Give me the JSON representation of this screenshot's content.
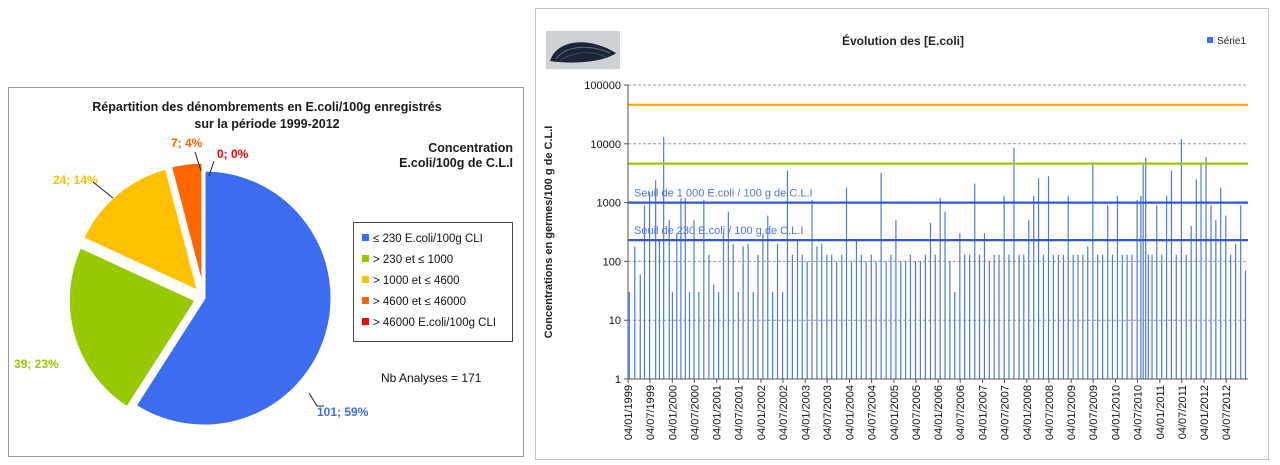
{
  "pie_panel": {
    "title_line1": "Répartition des dénombrements en E.coli/100g enregistrés",
    "title_line2": "sur la période 1999-2012",
    "legend_title_line1": "Concentration",
    "legend_title_line2": "E.coli/100g de C.L.I",
    "nb_analyses": "Nb Analyses = 171"
  },
  "line_panel": {
    "title": "Évolution des [E.coli]",
    "series_name": "Série1",
    "ylabel": "Concentrations en germes/100 g de C.L.I",
    "threshold_label_1000": "Seuil de 1 000 E.coli / 100 g de C.L.I",
    "threshold_label_230": "Seuil de 230 E.coli / 100 g de C.L.I"
  },
  "colors": {
    "blue": "#3d6cf0",
    "green": "#98c800",
    "yellow": "#ffc000",
    "orange": "#ff6600",
    "red": "#ff0000",
    "threshold_line": "#3355dd",
    "series": "#4a7bdc"
  },
  "chart_data": [
    {
      "type": "pie",
      "title": "Répartition des dénombrements en E.coli/100g enregistrés sur la période 1999-2012",
      "slices": [
        {
          "label": "≤ 230 E.coli/100g CLI",
          "count": 101,
          "percent": 59,
          "data_label": "101; 59%",
          "color": "#3d6cf0"
        },
        {
          "label": "> 230 et ≤ 1000",
          "count": 39,
          "percent": 23,
          "data_label": "39; 23%",
          "color": "#98c800"
        },
        {
          "label": "> 1000 et ≤ 4600",
          "count": 24,
          "percent": 14,
          "data_label": "24; 14%",
          "color": "#ffc000"
        },
        {
          "label": "> 4600 et ≤ 46000",
          "count": 7,
          "percent": 4,
          "data_label": "7; 4%",
          "color": "#ff6600"
        },
        {
          "label": "> 46000 E.coli/100g CLI",
          "count": 0,
          "percent": 0,
          "data_label": "0; 0%",
          "color": "#ff0000"
        }
      ],
      "legend_placement": "right",
      "total": 171
    },
    {
      "type": "bar",
      "title": "Évolution des [E.coli]",
      "ylabel": "Concentrations en germes/100 g de C.L.I",
      "yscale": "log",
      "ylim": [
        1,
        100000
      ],
      "yticks": [
        "1",
        "10",
        "100",
        "1000",
        "10000",
        "100000"
      ],
      "xlim": [
        "1999-01-04",
        "2012-12-31"
      ],
      "xticks": [
        "04/01/1999",
        "04/07/1999",
        "04/01/2000",
        "04/07/2000",
        "04/01/2001",
        "04/07/2001",
        "04/01/2002",
        "04/07/2002",
        "04/01/2003",
        "04/07/2003",
        "04/01/2004",
        "04/07/2004",
        "04/01/2005",
        "04/07/2005",
        "04/01/2006",
        "04/07/2006",
        "04/01/2007",
        "04/07/2007",
        "04/01/2008",
        "04/07/2008",
        "04/01/2009",
        "04/07/2009",
        "04/01/2010",
        "04/07/2010",
        "04/01/2011",
        "04/07/2011",
        "04/01/2012",
        "04/07/2012"
      ],
      "grid": true,
      "legend_placement": "top-right",
      "series": [
        {
          "name": "Série1",
          "values": [
            [
              "1999-01-15",
              30
            ],
            [
              "1999-03-01",
              180
            ],
            [
              "1999-04-15",
              60
            ],
            [
              "1999-05-20",
              900
            ],
            [
              "1999-07-01",
              1500
            ],
            [
              "1999-08-20",
              2400
            ],
            [
              "1999-09-20",
              230
            ],
            [
              "1999-10-25",
              13000
            ],
            [
              "1999-12-10",
              500
            ],
            [
              "2000-01-05",
              30
            ],
            [
              "2000-02-10",
              300
            ],
            [
              "2000-03-15",
              1200
            ],
            [
              "2000-04-20",
              1200
            ],
            [
              "2000-05-25",
              30
            ],
            [
              "2000-07-01",
              500
            ],
            [
              "2000-08-10",
              30
            ],
            [
              "2000-09-20",
              1100
            ],
            [
              "2000-11-01",
              130
            ],
            [
              "2000-12-10",
              40
            ],
            [
              "2001-01-20",
              30
            ],
            [
              "2001-03-01",
              300
            ],
            [
              "2001-04-10",
              700
            ],
            [
              "2001-05-20",
              200
            ],
            [
              "2001-07-01",
              30
            ],
            [
              "2001-08-10",
              180
            ],
            [
              "2001-09-20",
              200
            ],
            [
              "2001-11-01",
              30
            ],
            [
              "2001-12-10",
              130
            ],
            [
              "2002-01-20",
              300
            ],
            [
              "2002-03-01",
              600
            ],
            [
              "2002-04-10",
              30
            ],
            [
              "2002-05-20",
              200
            ],
            [
              "2002-07-01",
              30
            ],
            [
              "2002-08-10",
              3500
            ],
            [
              "2002-09-20",
              130
            ],
            [
              "2002-11-01",
              230
            ],
            [
              "2002-12-10",
              130
            ],
            [
              "2003-01-20",
              100
            ],
            [
              "2003-03-01",
              1100
            ],
            [
              "2003-04-10",
              180
            ],
            [
              "2003-05-20",
              200
            ],
            [
              "2003-07-01",
              130
            ],
            [
              "2003-08-10",
              130
            ],
            [
              "2003-09-20",
              100
            ],
            [
              "2003-11-01",
              130
            ],
            [
              "2003-12-10",
              1800
            ],
            [
              "2004-01-20",
              100
            ],
            [
              "2004-03-01",
              230
            ],
            [
              "2004-04-10",
              130
            ],
            [
              "2004-05-20",
              100
            ],
            [
              "2004-07-01",
              130
            ],
            [
              "2004-08-10",
              100
            ],
            [
              "2004-09-20",
              3200
            ],
            [
              "2004-11-01",
              100
            ],
            [
              "2004-12-10",
              130
            ],
            [
              "2005-01-20",
              500
            ],
            [
              "2005-03-01",
              100
            ],
            [
              "2005-04-10",
              100
            ],
            [
              "2005-05-20",
              130
            ],
            [
              "2005-07-01",
              100
            ],
            [
              "2005-08-10",
              100
            ],
            [
              "2005-09-20",
              130
            ],
            [
              "2005-11-01",
              450
            ],
            [
              "2005-12-10",
              130
            ],
            [
              "2006-01-20",
              1200
            ],
            [
              "2006-03-01",
              700
            ],
            [
              "2006-04-10",
              100
            ],
            [
              "2006-05-20",
              30
            ],
            [
              "2006-07-01",
              300
            ],
            [
              "2006-08-10",
              130
            ],
            [
              "2006-09-20",
              130
            ],
            [
              "2006-11-01",
              2100
            ],
            [
              "2006-12-10",
              130
            ],
            [
              "2007-01-20",
              300
            ],
            [
              "2007-03-01",
              100
            ],
            [
              "2007-04-10",
              130
            ],
            [
              "2007-05-20",
              130
            ],
            [
              "2007-07-01",
              1300
            ],
            [
              "2007-08-10",
              130
            ],
            [
              "2007-09-20",
              8500
            ],
            [
              "2007-11-01",
              130
            ],
            [
              "2007-12-10",
              130
            ],
            [
              "2008-01-20",
              500
            ],
            [
              "2008-03-01",
              1300
            ],
            [
              "2008-04-10",
              2600
            ],
            [
              "2008-05-20",
              130
            ],
            [
              "2008-07-01",
              2800
            ],
            [
              "2008-08-10",
              130
            ],
            [
              "2008-09-20",
              130
            ],
            [
              "2008-11-01",
              130
            ],
            [
              "2008-12-10",
              1300
            ],
            [
              "2009-01-20",
              130
            ],
            [
              "2009-03-01",
              130
            ],
            [
              "2009-04-10",
              130
            ],
            [
              "2009-05-20",
              180
            ],
            [
              "2009-07-01",
              4800
            ],
            [
              "2009-08-10",
              130
            ],
            [
              "2009-09-20",
              130
            ],
            [
              "2009-11-01",
              900
            ],
            [
              "2009-12-10",
              130
            ],
            [
              "2010-01-20",
              1300
            ],
            [
              "2010-03-01",
              130
            ],
            [
              "2010-04-10",
              130
            ],
            [
              "2010-05-20",
              130
            ],
            [
              "2010-07-01",
              1100
            ],
            [
              "2010-08-01",
              1300
            ],
            [
              "2010-08-20",
              4600
            ],
            [
              "2010-09-10",
              5800
            ],
            [
              "2010-10-01",
              130
            ],
            [
              "2010-11-01",
              130
            ],
            [
              "2010-12-10",
              900
            ],
            [
              "2011-01-20",
              130
            ],
            [
              "2011-03-01",
              1300
            ],
            [
              "2011-04-10",
              3500
            ],
            [
              "2011-05-20",
              130
            ],
            [
              "2011-07-01",
              12000
            ],
            [
              "2011-08-10",
              130
            ],
            [
              "2011-09-20",
              400
            ],
            [
              "2011-11-01",
              2500
            ],
            [
              "2011-12-10",
              4600
            ],
            [
              "2012-01-20",
              6000
            ],
            [
              "2012-03-01",
              900
            ],
            [
              "2012-04-10",
              500
            ],
            [
              "2012-05-20",
              1800
            ],
            [
              "2012-07-01",
              600
            ],
            [
              "2012-08-10",
              130
            ],
            [
              "2012-09-20",
              200
            ],
            [
              "2012-11-01",
              900
            ],
            [
              "2012-12-10",
              70
            ]
          ]
        }
      ],
      "reference_lines": [
        {
          "value": 46000,
          "color": "#ffa500"
        },
        {
          "value": 4600,
          "color": "#98c800"
        },
        {
          "value": 1000,
          "color": "#3355dd",
          "label": "Seuil de 1 000 E.coli / 100 g de C.L.I"
        },
        {
          "value": 230,
          "color": "#3355dd",
          "label": "Seuil de 230 E.coli / 100 g de C.L.I"
        }
      ]
    }
  ]
}
